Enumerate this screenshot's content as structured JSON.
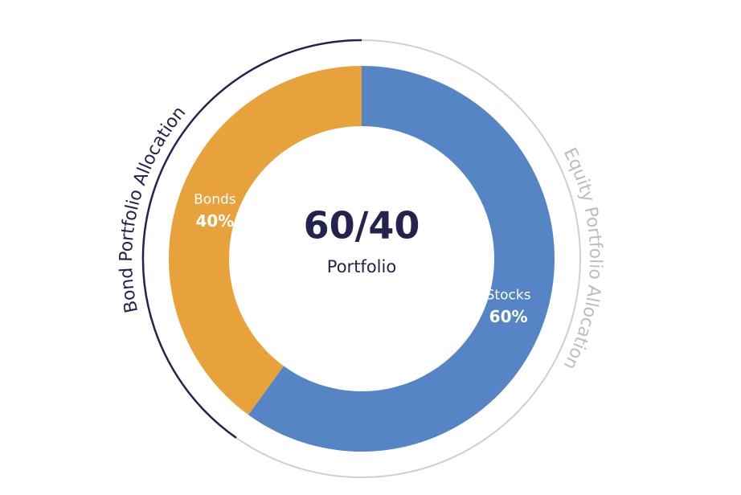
{
  "chart_data": {
    "type": "donut",
    "center_title": "60/40",
    "center_subtitle": "Portfolio",
    "categories": [
      "Stocks",
      "Bonds"
    ],
    "values": [
      60,
      40
    ],
    "value_labels": [
      "60%",
      "40%"
    ],
    "colors": [
      "#5585c5",
      "#e8a23c"
    ],
    "arc_labels": [
      "Equity Portfolio Allocation",
      "Bond Portfolio Allocation"
    ]
  }
}
